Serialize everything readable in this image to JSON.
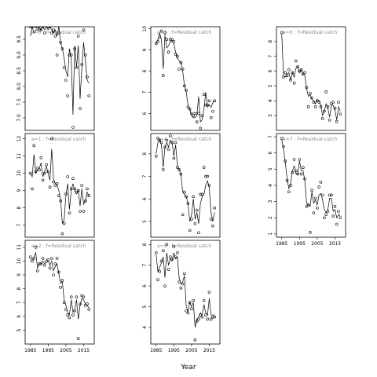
{
  "figure": {
    "xlabel": "Year"
  },
  "chart_data": [
    {
      "type": "line",
      "title": "a=0 : f=Residual catch",
      "xlim": [
        1982,
        2021
      ],
      "ylim": [
        6.6,
        9.9
      ],
      "yticks": [
        "7.0",
        "7.5",
        "8.0",
        "8.5",
        "9.0",
        "9.5"
      ],
      "xticks": [],
      "x": [
        1985,
        1986,
        1987,
        1988,
        1989,
        1990,
        1991,
        1992,
        1993,
        1994,
        1995,
        1996,
        1997,
        1998,
        1999,
        2000,
        2001,
        2002,
        2003,
        2004,
        2005,
        2006,
        2007,
        2008,
        2009,
        2010,
        2011,
        2012,
        2013,
        2014,
        2015,
        2016,
        2017,
        2018
      ],
      "points": [
        9.9,
        9.9,
        10.0,
        9.9,
        9.9,
        9.8,
        9.8,
        9.9,
        9.7,
        10.0,
        9.9,
        9.9,
        9.7,
        9.8,
        9.6,
        9.0,
        9.7,
        9.4,
        9.2,
        8.6,
        8.2,
        7.7,
        9.0,
        9.0,
        6.7,
        9.2,
        8.6,
        9.6,
        7.3,
        8.7,
        9.8,
        9.0,
        8.3,
        7.7
      ],
      "fit": [
        9.6,
        9.9,
        9.7,
        9.8,
        9.8,
        9.9,
        9.8,
        9.9,
        9.8,
        9.9,
        9.8,
        9.9,
        9.8,
        9.7,
        9.8,
        9.6,
        9.9,
        9.4,
        9.2,
        8.9,
        8.5,
        8.3,
        9.2,
        8.9,
        7.1,
        9.3,
        8.6,
        9.3,
        7.6,
        8.6,
        9.4,
        8.8,
        8.2,
        8.1
      ]
    },
    {
      "type": "line",
      "title": "a=3 : f=Residual catch",
      "xlim": [
        1982,
        2021
      ],
      "ylim": [
        5.2,
        10.1
      ],
      "yticks": [
        "6",
        "7",
        "8",
        "9",
        "10"
      ],
      "xticks": [],
      "x": [
        1985,
        1986,
        1987,
        1988,
        1989,
        1990,
        1991,
        1992,
        1993,
        1994,
        1995,
        1996,
        1997,
        1998,
        1999,
        2000,
        2001,
        2002,
        2003,
        2004,
        2005,
        2006,
        2007,
        2008,
        2009,
        2010,
        2011,
        2012,
        2013,
        2014,
        2015,
        2016,
        2017,
        2018
      ],
      "points": [
        9.3,
        9.4,
        9.6,
        9.9,
        7.8,
        9.8,
        9.5,
        8.9,
        9.5,
        9.5,
        9.4,
        8.8,
        8.7,
        8.1,
        8.4,
        8.1,
        7.3,
        7.1,
        6.3,
        6.2,
        6.0,
        5.9,
        6.0,
        5.6,
        6.0,
        5.3,
        5.9,
        6.9,
        6.4,
        6.4,
        6.6,
        5.8,
        6.1,
        6.6
      ],
      "fit": [
        9.3,
        9.5,
        9.8,
        9.5,
        8.1,
        9.7,
        9.1,
        9.2,
        9.4,
        9.4,
        9.3,
        8.9,
        8.6,
        8.5,
        8.4,
        8.0,
        7.3,
        7.0,
        6.4,
        6.2,
        5.9,
        5.8,
        5.8,
        5.9,
        6.8,
        5.6,
        5.7,
        6.2,
        7.0,
        6.3,
        6.4,
        6.3,
        6.5,
        6.6
      ]
    },
    {
      "type": "line",
      "title": "a=6 : f=Residual catch",
      "xlim": [
        1982,
        2021
      ],
      "ylim": [
        2.0,
        9.0
      ],
      "yticks": [
        "3",
        "4",
        "5",
        "6",
        "7",
        "8"
      ],
      "xticks": [],
      "x": [
        1985,
        1986,
        1987,
        1988,
        1989,
        1990,
        1991,
        1992,
        1993,
        1994,
        1995,
        1996,
        1997,
        1998,
        1999,
        2000,
        2001,
        2002,
        2003,
        2004,
        2005,
        2006,
        2007,
        2008,
        2009,
        2010,
        2011,
        2012,
        2013,
        2014,
        2015,
        2016,
        2017,
        2018
      ],
      "points": [
        8.6,
        5.6,
        5.9,
        5.7,
        6.1,
        5.4,
        5.9,
        5.2,
        6.7,
        6.3,
        6.0,
        6.1,
        5.8,
        5.9,
        4.9,
        3.6,
        4.5,
        4.2,
        3.9,
        3.6,
        4.0,
        3.9,
        3.6,
        2.8,
        3.3,
        4.6,
        3.6,
        2.7,
        3.8,
        3.9,
        3.5,
        2.6,
        3.9,
        3.1
      ],
      "fit": [
        8.5,
        5.7,
        5.6,
        5.8,
        5.9,
        5.4,
        5.9,
        5.6,
        6.2,
        6.3,
        5.9,
        6.1,
        5.8,
        5.7,
        4.8,
        4.3,
        4.4,
        4.1,
        4.0,
        3.8,
        4.1,
        4.0,
        3.7,
        3.0,
        3.3,
        3.8,
        3.5,
        2.9,
        3.7,
        3.7,
        3.4,
        2.7,
        3.6,
        3.3
      ]
    },
    {
      "type": "line",
      "title": "a=1 : f=Residual catch",
      "xlim": [
        1982,
        2021
      ],
      "ylim": [
        6.3,
        12.3
      ],
      "yticks": [
        "7",
        "8",
        "9",
        "10",
        "11",
        "12"
      ],
      "xticks": [],
      "x": [
        1985,
        1986,
        1987,
        1988,
        1989,
        1990,
        1991,
        1992,
        1993,
        1994,
        1995,
        1996,
        1997,
        1998,
        1999,
        2000,
        2001,
        2002,
        2003,
        2004,
        2005,
        2006,
        2007,
        2008,
        2009,
        2010,
        2011,
        2012,
        2013,
        2014,
        2015,
        2016,
        2017,
        2018
      ],
      "points": [
        10.0,
        9.1,
        11.6,
        10.1,
        10.3,
        10.2,
        10.9,
        9.6,
        10.0,
        10.5,
        10.1,
        9.2,
        12.0,
        9.5,
        9.3,
        9.4,
        8.7,
        8.4,
        6.5,
        7.1,
        8.8,
        9.8,
        7.7,
        9.1,
        9.7,
        9.1,
        8.9,
        9.0,
        7.8,
        9.3,
        7.8,
        8.4,
        9.1,
        8.7
      ],
      "fit": [
        10.0,
        9.8,
        11.1,
        10.0,
        10.2,
        10.3,
        10.6,
        9.8,
        10.1,
        10.4,
        10.0,
        9.6,
        11.4,
        9.7,
        9.4,
        9.3,
        9.0,
        8.5,
        7.1,
        7.3,
        8.7,
        9.4,
        7.9,
        9.0,
        9.4,
        9.0,
        8.8,
        9.0,
        8.1,
        9.1,
        8.2,
        8.4,
        8.9,
        8.7
      ]
    },
    {
      "type": "line",
      "title": "a=4 : f=Residual catch",
      "xlim": [
        1982,
        2021
      ],
      "ylim": [
        4.3,
        8.9
      ],
      "yticks": [
        "5",
        "6",
        "7",
        "8"
      ],
      "xticks": [],
      "x": [
        1985,
        1986,
        1987,
        1988,
        1989,
        1990,
        1991,
        1992,
        1993,
        1994,
        1995,
        1996,
        1997,
        1998,
        1999,
        2000,
        2001,
        2002,
        2003,
        2004,
        2005,
        2006,
        2007,
        2008,
        2009,
        2010,
        2011,
        2012,
        2013,
        2014,
        2015,
        2016,
        2017,
        2018
      ],
      "points": [
        7.9,
        8.7,
        8.6,
        8.5,
        7.3,
        8.3,
        8.6,
        8.2,
        8.8,
        8.5,
        7.8,
        8.5,
        7.4,
        7.3,
        7.1,
        5.3,
        6.3,
        6.1,
        5.8,
        4.6,
        5.1,
        6.1,
        4.9,
        5.5,
        4.5,
        6.2,
        6.2,
        7.4,
        7.0,
        7.0,
        6.6,
        5.1,
        4.8,
        5.6
      ],
      "fit": [
        8.0,
        8.5,
        8.6,
        8.4,
        7.4,
        8.3,
        8.5,
        8.3,
        8.6,
        8.5,
        7.9,
        8.4,
        7.5,
        7.3,
        7.1,
        6.3,
        6.2,
        6.1,
        5.8,
        5.0,
        5.3,
        6.0,
        5.1,
        5.4,
        4.9,
        5.8,
        6.1,
        6.2,
        6.6,
        6.8,
        6.5,
        5.4,
        5.0,
        5.4
      ]
    },
    {
      "type": "line",
      "title": "a=7 : f=Residual catch",
      "xlim": [
        1982,
        2021
      ],
      "ylim": [
        0.8,
        7.2
      ],
      "yticks": [
        "1",
        "2",
        "3",
        "4",
        "5",
        "6",
        "7"
      ],
      "xticks": [
        "1985",
        "1995",
        "2005",
        "2015"
      ],
      "x": [
        1985,
        1986,
        1987,
        1988,
        1989,
        1990,
        1991,
        1992,
        1993,
        1994,
        1995,
        1996,
        1997,
        1998,
        1999,
        2000,
        2001,
        2002,
        2003,
        2004,
        2005,
        2006,
        2007,
        2008,
        2009,
        2010,
        2011,
        2012,
        2013,
        2014,
        2015,
        2016,
        2017,
        2018
      ],
      "points": [
        6.9,
        6.4,
        5.5,
        4.3,
        3.6,
        4.0,
        4.8,
        5.6,
        4.9,
        4.7,
        5.6,
        4.7,
        5.1,
        4.4,
        2.7,
        2.8,
        1.1,
        3.7,
        2.3,
        3.2,
        2.6,
        3.9,
        4.2,
        3.4,
        2.0,
        2.2,
        2.4,
        3.4,
        3.4,
        2.1,
        2.7,
        1.6,
        2.4,
        2.0
      ],
      "fit": [
        6.8,
        6.2,
        5.4,
        4.4,
        3.8,
        4.1,
        4.9,
        5.2,
        4.7,
        4.7,
        5.5,
        4.9,
        4.9,
        4.3,
        2.9,
        2.8,
        2.7,
        3.6,
        2.9,
        3.1,
        2.8,
        3.4,
        3.5,
        3.1,
        2.5,
        2.3,
        2.5,
        3.2,
        3.2,
        2.4,
        2.5,
        2.0,
        2.2,
        2.1
      ]
    },
    {
      "type": "line",
      "title": "a=2 : f=Residual catch",
      "xlim": [
        1982,
        2021
      ],
      "ylim": [
        4.0,
        11.5
      ],
      "yticks": [
        "5",
        "6",
        "7",
        "8",
        "9",
        "10",
        "11"
      ],
      "xticks": [
        "1985",
        "1995",
        "2005",
        "2015"
      ],
      "x": [
        1985,
        1986,
        1987,
        1988,
        1989,
        1990,
        1991,
        1992,
        1993,
        1994,
        1995,
        1996,
        1997,
        1998,
        1999,
        2000,
        2001,
        2002,
        2003,
        2004,
        2005,
        2006,
        2007,
        2008,
        2009,
        2010,
        2011,
        2012,
        2013,
        2014,
        2015,
        2016,
        2017,
        2018
      ],
      "points": [
        10.3,
        10.0,
        10.2,
        11.0,
        9.3,
        9.8,
        9.8,
        10.2,
        9.7,
        10.0,
        10.1,
        9.5,
        10.2,
        9.0,
        9.8,
        10.2,
        9.2,
        8.1,
        8.6,
        7.0,
        6.5,
        6.1,
        5.9,
        7.4,
        6.1,
        6.4,
        7.4,
        4.4,
        6.9,
        7.5,
        7.4,
        6.8,
        6.9,
        6.5
      ],
      "fit": [
        10.2,
        10.1,
        10.3,
        10.6,
        9.5,
        9.8,
        9.8,
        10.0,
        9.8,
        9.9,
        10.0,
        9.7,
        10.0,
        9.3,
        9.6,
        9.8,
        9.1,
        8.4,
        8.5,
        7.2,
        6.8,
        6.3,
        6.1,
        7.2,
        6.3,
        6.5,
        7.2,
        5.8,
        6.8,
        7.3,
        7.2,
        6.9,
        6.8,
        6.6
      ]
    },
    {
      "type": "line",
      "title": "a=5 : f=Residual catch",
      "xlim": [
        1982,
        2021
      ],
      "ylim": [
        3.2,
        8.2
      ],
      "yticks": [
        "4",
        "5",
        "6",
        "7",
        "8"
      ],
      "xticks": [
        "1985",
        "1995",
        "2005",
        "2015"
      ],
      "x": [
        1985,
        1986,
        1987,
        1988,
        1989,
        1990,
        1991,
        1992,
        1993,
        1994,
        1995,
        1996,
        1997,
        1998,
        1999,
        2000,
        2001,
        2002,
        2003,
        2004,
        2005,
        2006,
        2007,
        2008,
        2009,
        2010,
        2011,
        2012,
        2013,
        2014,
        2015,
        2016,
        2017,
        2018
      ],
      "points": [
        7.6,
        6.3,
        6.7,
        7.2,
        7.7,
        6.0,
        8.0,
        6.8,
        7.4,
        7.3,
        7.9,
        7.4,
        7.6,
        6.2,
        5.9,
        6.1,
        6.6,
        4.8,
        4.7,
        5.2,
        4.9,
        5.3,
        3.4,
        4.3,
        4.4,
        4.6,
        4.5,
        5.3,
        4.6,
        4.4,
        5.7,
        4.4,
        4.5,
        4.5
      ],
      "fit": [
        7.5,
        6.7,
        6.9,
        7.1,
        7.4,
        6.4,
        7.6,
        7.0,
        7.3,
        7.2,
        7.6,
        7.3,
        7.4,
        6.4,
        6.1,
        6.2,
        6.5,
        5.0,
        4.8,
        5.2,
        5.0,
        5.2,
        4.0,
        4.4,
        4.5,
        4.7,
        4.6,
        5.1,
        4.7,
        4.6,
        5.4,
        4.6,
        4.6,
        4.6
      ]
    }
  ]
}
